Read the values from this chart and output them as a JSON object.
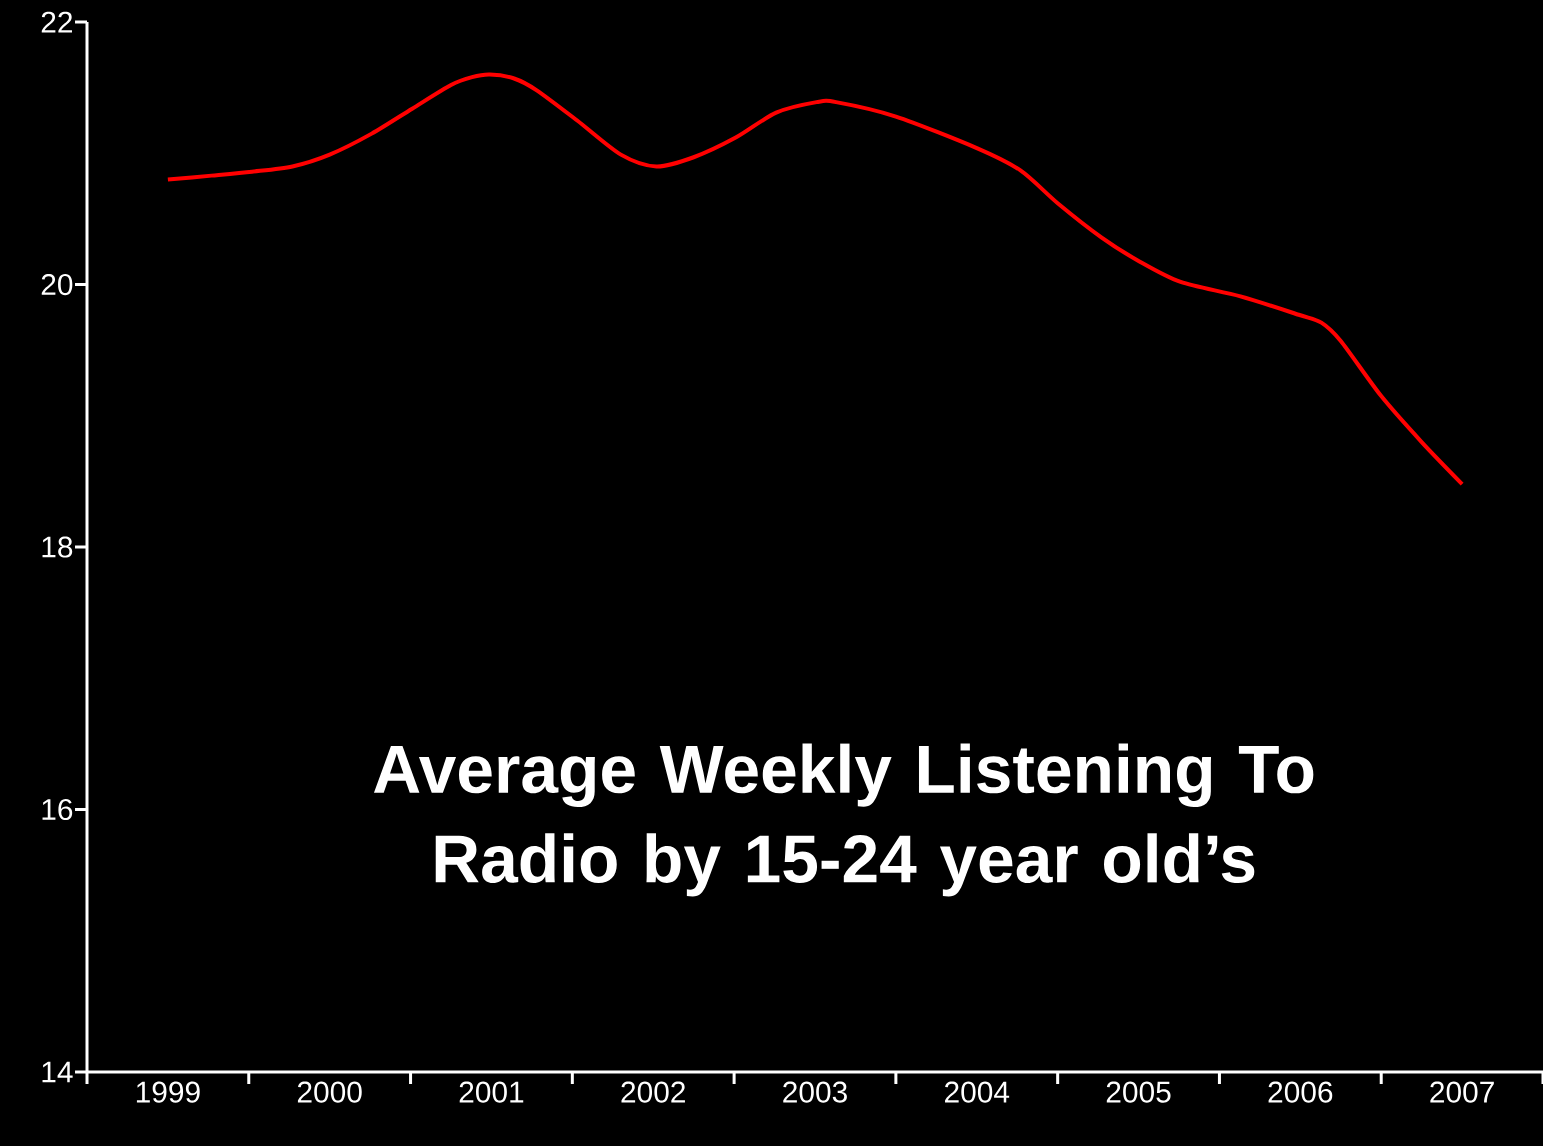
{
  "chart_data": {
    "type": "line",
    "title": "Average Weekly Listening To Radio by 15-24 year old’s",
    "x": [
      1999.0,
      1999.27,
      1999.52,
      1999.77,
      2000.0,
      2000.26,
      2000.51,
      2000.75,
      2000.88,
      2000.99,
      2001.14,
      2001.28,
      2001.53,
      2001.8,
      2002.02,
      2002.25,
      2002.51,
      2002.76,
      2003.01,
      2003.13,
      2003.5,
      2004.0,
      2004.27,
      2004.5,
      2004.77,
      2005.0,
      2005.26,
      2005.63,
      2005.99,
      2006.13,
      2006.25,
      2006.5,
      2006.75,
      2007.0
    ],
    "series": [
      {
        "color": "#ff0000",
        "values": [
          20.8,
          20.83,
          20.86,
          20.9,
          20.99,
          21.15,
          21.34,
          21.52,
          21.58,
          21.6,
          21.57,
          21.48,
          21.25,
          20.99,
          20.9,
          20.97,
          21.12,
          21.31,
          21.39,
          21.39,
          21.28,
          21.04,
          20.87,
          20.62,
          20.36,
          20.18,
          20.02,
          19.91,
          19.77,
          19.71,
          19.57,
          19.15,
          18.8,
          18.48
        ]
      }
    ],
    "xlim": [
      1998.5,
      2007.5
    ],
    "xticks": [
      {
        "value": 1998.5,
        "label": null
      },
      1999,
      {
        "value": 1999.5,
        "label": null
      },
      2000,
      {
        "value": 2000.5,
        "label": null
      },
      2001,
      {
        "value": 2001.5,
        "label": null
      },
      2002,
      {
        "value": 2002.5,
        "label": null
      },
      2003,
      {
        "value": 2003.5,
        "label": null
      },
      2004,
      {
        "value": 2004.5,
        "label": null
      },
      2005,
      {
        "value": 2005.5,
        "label": null
      },
      2006,
      {
        "value": 2006.5,
        "label": null
      },
      2007,
      {
        "value": 2007.5,
        "label": null
      }
    ],
    "ylim": [
      14,
      22
    ],
    "yticks": [
      14,
      16,
      18,
      20,
      22
    ],
    "marker": "none",
    "line_style": "solid",
    "grid": false
  }
}
